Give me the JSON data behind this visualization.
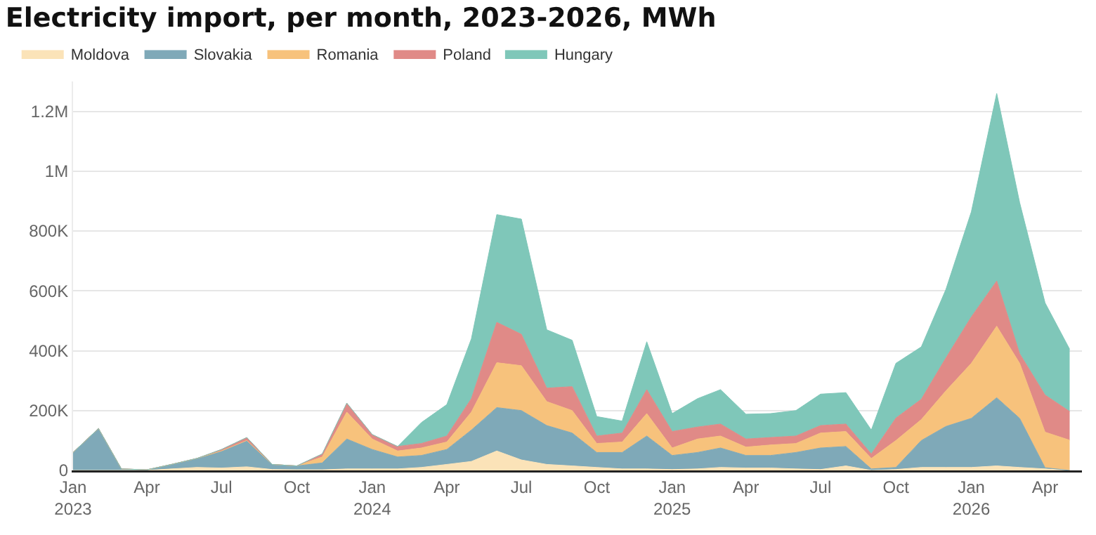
{
  "chart_data": {
    "type": "area",
    "stacked": true,
    "title": "Electricity import, per month, 2023-2026, MWh",
    "x": [
      "2023-01",
      "2023-02",
      "2023-03",
      "2023-04",
      "2023-05",
      "2023-06",
      "2023-07",
      "2023-08",
      "2023-09",
      "2023-10",
      "2023-11",
      "2023-12",
      "2024-01",
      "2024-02",
      "2024-03",
      "2024-04",
      "2024-05",
      "2024-06",
      "2024-07",
      "2024-08",
      "2024-09",
      "2024-10",
      "2024-11",
      "2024-12",
      "2025-01",
      "2025-02",
      "2025-03",
      "2025-04",
      "2025-05",
      "2025-06",
      "2025-07",
      "2025-08",
      "2025-09",
      "2025-10",
      "2025-11",
      "2025-12",
      "2026-01",
      "2026-02",
      "2026-03",
      "2026-04",
      "2026-05"
    ],
    "series": [
      {
        "name": "Moldova",
        "color": "#fbe3b8",
        "values": [
          0,
          0,
          0,
          0,
          5000,
          10000,
          8000,
          12000,
          3000,
          2000,
          2000,
          5000,
          5000,
          5000,
          10000,
          20000,
          30000,
          65000,
          35000,
          20000,
          15000,
          10000,
          5000,
          5000,
          3000,
          5000,
          10000,
          8000,
          8000,
          5000,
          3000,
          15000,
          0,
          3000,
          10000,
          10000,
          10000,
          15000,
          10000,
          5000,
          0
        ]
      },
      {
        "name": "Slovakia",
        "color": "#7fa9b8",
        "values": [
          60000,
          140000,
          5000,
          2000,
          15000,
          30000,
          57000,
          88000,
          17000,
          13000,
          23000,
          100000,
          65000,
          40000,
          40000,
          50000,
          105000,
          145000,
          165000,
          130000,
          110000,
          50000,
          55000,
          110000,
          47000,
          55000,
          65000,
          42000,
          42000,
          55000,
          72000,
          65000,
          5000,
          7000,
          90000,
          137000,
          164000,
          228000,
          164000,
          4000,
          0
        ]
      },
      {
        "name": "Romania",
        "color": "#f7c27c",
        "values": [
          0,
          0,
          0,
          0,
          0,
          0,
          0,
          0,
          0,
          0,
          20000,
          90000,
          35000,
          20000,
          25000,
          25000,
          60000,
          150000,
          150000,
          80000,
          75000,
          30000,
          35000,
          75000,
          25000,
          45000,
          40000,
          28000,
          35000,
          30000,
          50000,
          50000,
          35000,
          90000,
          70000,
          119000,
          184000,
          239000,
          184000,
          119000,
          101000
        ]
      },
      {
        "name": "Poland",
        "color": "#e08a87",
        "values": [
          0,
          0,
          0,
          0,
          0,
          0,
          5000,
          10000,
          0,
          0,
          10000,
          30000,
          15000,
          15000,
          15000,
          20000,
          45000,
          135000,
          105000,
          45000,
          80000,
          25000,
          30000,
          80000,
          55000,
          40000,
          40000,
          27000,
          25000,
          25000,
          25000,
          25000,
          15000,
          75000,
          68000,
          110000,
          155000,
          151000,
          32000,
          124000,
          96000
        ]
      },
      {
        "name": "Hungary",
        "color": "#7fc7b9",
        "values": [
          0,
          0,
          0,
          0,
          0,
          0,
          0,
          0,
          0,
          0,
          0,
          0,
          0,
          0,
          70000,
          105000,
          200000,
          360000,
          385000,
          195000,
          155000,
          65000,
          40000,
          160000,
          60000,
          95000,
          115000,
          83000,
          80000,
          85000,
          105000,
          105000,
          80000,
          183000,
          175000,
          229000,
          351000,
          627000,
          505000,
          308000,
          208000
        ]
      }
    ],
    "xlim": [
      "2023-01-01",
      "2026-05-16"
    ],
    "xticks": [
      {
        "value": "2023-01",
        "label": "Jan\n2023"
      },
      {
        "value": "2023-04",
        "label": "Apr"
      },
      {
        "value": "2023-07",
        "label": "Jul"
      },
      {
        "value": "2023-10",
        "label": "Oct"
      },
      {
        "value": "2024-01",
        "label": "Jan\n2024"
      },
      {
        "value": "2024-04",
        "label": "Apr"
      },
      {
        "value": "2024-07",
        "label": "Jul"
      },
      {
        "value": "2024-10",
        "label": "Oct"
      },
      {
        "value": "2025-01",
        "label": "Jan\n2025"
      },
      {
        "value": "2025-04",
        "label": "Apr"
      },
      {
        "value": "2025-07",
        "label": "Jul"
      },
      {
        "value": "2025-10",
        "label": "Oct"
      },
      {
        "value": "2026-01",
        "label": "Jan\n2026"
      },
      {
        "value": "2026-04",
        "label": "Apr"
      }
    ],
    "ylim": [
      0,
      1300000
    ],
    "yticks": [
      0,
      {
        "value": 200000,
        "label": "200K"
      },
      {
        "value": 400000,
        "label": "400K"
      },
      {
        "value": 600000,
        "label": "600K"
      },
      {
        "value": 800000,
        "label": "800K"
      },
      {
        "value": 1000000,
        "label": "1M"
      },
      {
        "value": 1200000,
        "label": "1.2M"
      }
    ],
    "grid": "y",
    "legend": "top left"
  }
}
